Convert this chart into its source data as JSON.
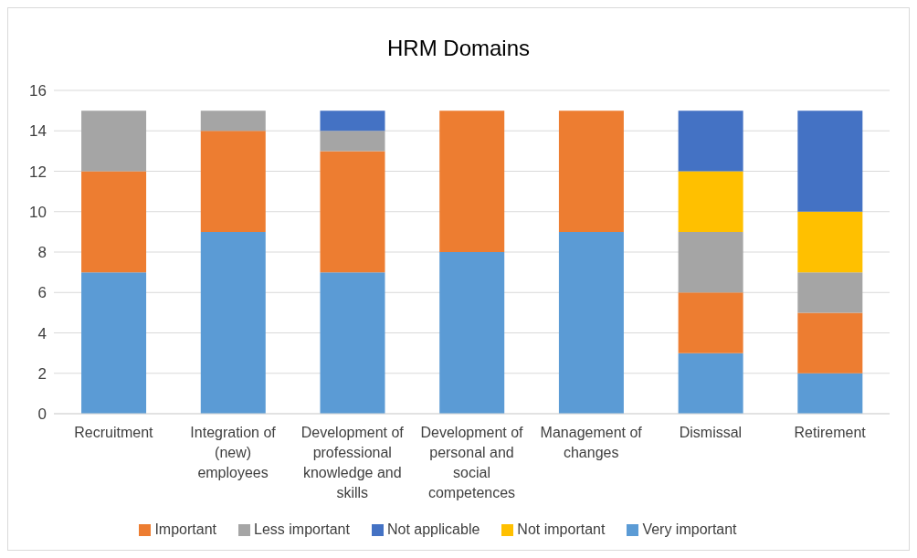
{
  "chart_data": {
    "type": "bar",
    "title": "HRM Domains",
    "stacked": true,
    "categories": [
      "Recruitment",
      "Integration of (new) employees",
      "Development of professional knowledge and skills",
      "Development of personal and social competences",
      "Management of changes",
      "Dismissal",
      "Retirement"
    ],
    "series": [
      {
        "name": "Very important",
        "color": "#5b9bd5",
        "values": [
          7,
          9,
          7,
          8,
          9,
          3,
          2
        ]
      },
      {
        "name": "Important",
        "color": "#ed7d31",
        "values": [
          5,
          5,
          6,
          7,
          6,
          3,
          3
        ]
      },
      {
        "name": "Less important",
        "color": "#a5a5a5",
        "values": [
          3,
          1,
          1,
          0,
          0,
          3,
          2
        ]
      },
      {
        "name": "Not important",
        "color": "#ffc000",
        "values": [
          0,
          0,
          0,
          0,
          0,
          3,
          3
        ]
      },
      {
        "name": "Not applicable",
        "color": "#4472c4",
        "values": [
          0,
          0,
          1,
          0,
          0,
          3,
          5
        ]
      }
    ],
    "ylim": [
      0,
      16
    ],
    "yticks": [
      0,
      2,
      4,
      6,
      8,
      10,
      12,
      14,
      16
    ],
    "grid": "y",
    "legend": "bottom"
  }
}
